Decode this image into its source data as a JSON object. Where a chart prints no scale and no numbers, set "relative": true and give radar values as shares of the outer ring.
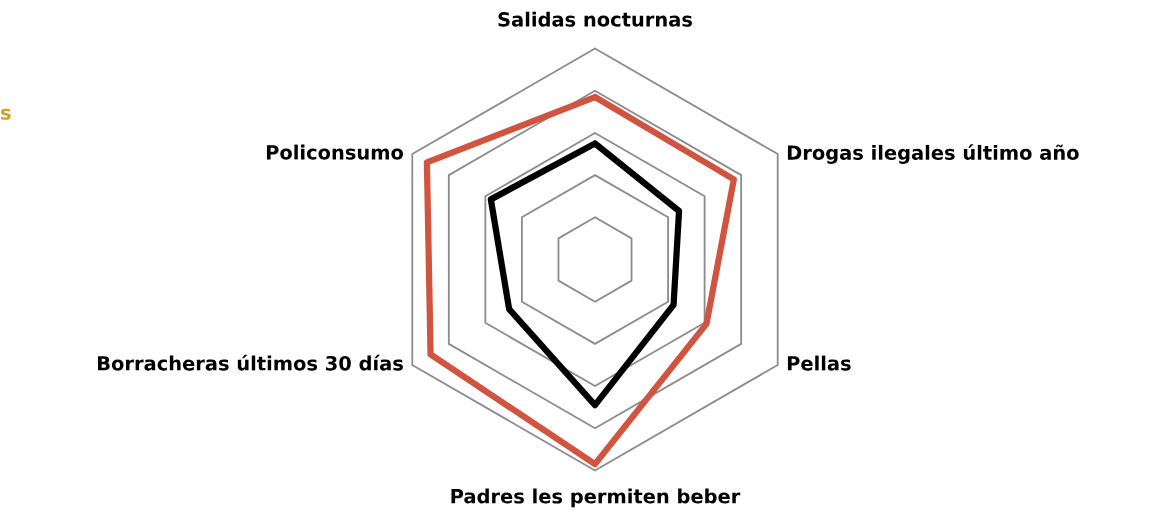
{
  "chart_data": {
    "type": "radar",
    "relative": true,
    "grid": true,
    "categories": [
      "Salidas nocturnas",
      "Drogas ilegales último año",
      "Pellas",
      "Padres les permiten beber",
      "Borracheras últimos 30 días",
      "Policonsumo"
    ],
    "series": [
      {
        "color": "#d0543f",
        "values": [
          0.77,
          0.76,
          0.61,
          0.97,
          0.9,
          0.92
        ]
      },
      {
        "color": "#000000",
        "values": [
          0.55,
          0.46,
          0.43,
          0.69,
          0.47,
          0.57
        ]
      }
    ],
    "annotations": [
      "s"
    ]
  }
}
